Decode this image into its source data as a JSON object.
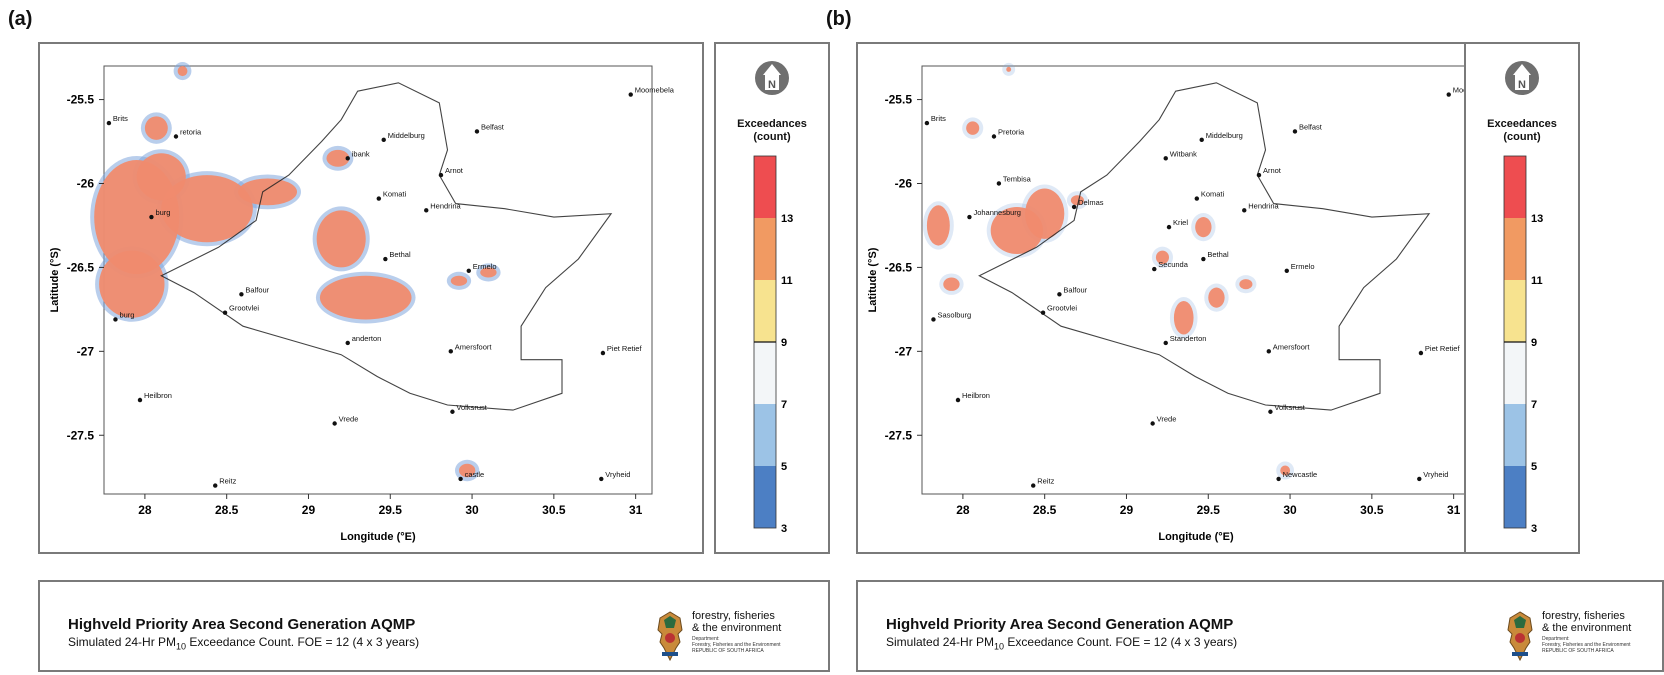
{
  "figures": [
    {
      "panel_label": "(a)",
      "footer": {
        "title": "Highveld Priority Area Second Generation AQMP",
        "subtitle_prefix": "Simulated 24-Hr PM",
        "subtitle_sub": "10",
        "subtitle_suffix": " Exceedance Count.  FOE = 12 (4 x 3 years)",
        "logo_text": [
          "forestry, fisheries",
          "& the environment"
        ],
        "logo_fine": [
          "Department:",
          "Forestry, Fisheries and the Environment",
          "REPUBLIC OF SOUTH AFRICA"
        ]
      },
      "towns": [
        {
          "name": "Moomebela",
          "lon": 30.97,
          "lat": -25.47
        },
        {
          "name": "Brits",
          "lon": 27.78,
          "lat": -25.64
        },
        {
          "name": "Pretoria",
          "lon": 28.19,
          "lat": -25.72
        },
        {
          "name": "Middelburg",
          "lon": 29.46,
          "lat": -25.74
        },
        {
          "name": "Belfast",
          "lon": 30.03,
          "lat": -25.69
        },
        {
          "name": "Witbank",
          "lon": 29.24,
          "lat": -25.85
        },
        {
          "name": "Arnot",
          "lon": 29.81,
          "lat": -25.95
        },
        {
          "name": "Komati",
          "lon": 29.43,
          "lat": -26.09
        },
        {
          "name": "Hendrina",
          "lon": 29.72,
          "lat": -26.16
        },
        {
          "name": "Johannesburg",
          "lon": 28.04,
          "lat": -26.2
        },
        {
          "name": "Bethal",
          "lon": 29.47,
          "lat": -26.45
        },
        {
          "name": "Ermelo",
          "lon": 29.98,
          "lat": -26.52
        },
        {
          "name": "Balfour",
          "lon": 28.59,
          "lat": -26.66
        },
        {
          "name": "Grootvlei",
          "lon": 28.49,
          "lat": -26.77
        },
        {
          "name": "Sasolburg",
          "lon": 27.82,
          "lat": -26.81
        },
        {
          "name": "Standerton",
          "lon": 29.24,
          "lat": -26.95
        },
        {
          "name": "Amersfoort",
          "lon": 29.87,
          "lat": -27.0
        },
        {
          "name": "Piet Retief",
          "lon": 30.8,
          "lat": -27.01
        },
        {
          "name": "Heilbron",
          "lon": 27.97,
          "lat": -27.29
        },
        {
          "name": "Volksrust",
          "lon": 29.88,
          "lat": -27.36
        },
        {
          "name": "Vrede",
          "lon": 29.16,
          "lat": -27.43
        },
        {
          "name": "Newcastle",
          "lon": 29.93,
          "lat": -27.76
        },
        {
          "name": "Reitz",
          "lon": 28.43,
          "lat": -27.8
        },
        {
          "name": "Vryheid",
          "lon": 30.79,
          "lat": -27.76
        }
      ],
      "town_labels_shown": {
        "Moomebela": "Moomebela",
        "Brits": "Brits",
        "Pretoria": "retoria",
        "Middelburg": "Middelburg",
        "Belfast": "Belfast",
        "Witbank": "ibank",
        "Arnot": "Arnot",
        "Komati": "Komati",
        "Hendrina": "Hendrina",
        "Johannesburg": "burg",
        "Bethal": "Bethal",
        "Ermelo": "Ermelo",
        "Balfour": "Balfour",
        "Grootvlei": "Grootvlei",
        "Sasolburg": "burg",
        "Standerton": "anderton",
        "Amersfoort": "Amersfoort",
        "Piet Retief": "Piet Retief",
        "Heilbron": "Heilbron",
        "Volksrust": "Volksrust",
        "Vrede": "Vrede",
        "Newcastle": "castle",
        "Reitz": "Reitz",
        "Vryheid": "Vryheid"
      },
      "exceedance_patches": [
        {
          "lon": 27.95,
          "lat": -26.2,
          "rx": 0.26,
          "ry": 0.34,
          "level": 12
        },
        {
          "lon": 27.92,
          "lat": -26.6,
          "rx": 0.2,
          "ry": 0.2,
          "level": 12
        },
        {
          "lon": 28.38,
          "lat": -26.15,
          "rx": 0.28,
          "ry": 0.2,
          "level": 12
        },
        {
          "lon": 28.1,
          "lat": -25.96,
          "rx": 0.15,
          "ry": 0.14,
          "level": 12
        },
        {
          "lon": 28.75,
          "lat": -26.05,
          "rx": 0.18,
          "ry": 0.08,
          "level": 12
        },
        {
          "lon": 28.07,
          "lat": -25.67,
          "rx": 0.07,
          "ry": 0.07,
          "level": 12
        },
        {
          "lon": 29.18,
          "lat": -25.85,
          "rx": 0.07,
          "ry": 0.05,
          "level": 12
        },
        {
          "lon": 29.2,
          "lat": -26.33,
          "rx": 0.15,
          "ry": 0.17,
          "level": 12
        },
        {
          "lon": 29.35,
          "lat": -26.68,
          "rx": 0.28,
          "ry": 0.13,
          "level": 12
        },
        {
          "lon": 29.97,
          "lat": -27.71,
          "rx": 0.05,
          "ry": 0.04,
          "level": 12
        },
        {
          "lon": 28.23,
          "lat": -25.33,
          "rx": 0.03,
          "ry": 0.03,
          "level": 12
        },
        {
          "lon": 30.1,
          "lat": -26.53,
          "rx": 0.05,
          "ry": 0.03,
          "level": 12
        },
        {
          "lon": 29.92,
          "lat": -26.58,
          "rx": 0.05,
          "ry": 0.03,
          "level": 12
        }
      ]
    },
    {
      "panel_label": "(b)",
      "footer": {
        "title": "Highveld Priority Area Second Generation AQMP",
        "subtitle_prefix": "Simulated 24-Hr PM",
        "subtitle_sub": "10",
        "subtitle_suffix": " Exceedance Count.  FOE = 12 (4 x 3 years)",
        "logo_text": [
          "forestry, fisheries",
          "& the environment"
        ],
        "logo_fine": [
          "Department:",
          "Forestry, Fisheries and the Environment",
          "REPUBLIC OF SOUTH AFRICA"
        ]
      },
      "towns": [
        {
          "name": "Moomebela",
          "lon": 30.97,
          "lat": -25.47
        },
        {
          "name": "Brits",
          "lon": 27.78,
          "lat": -25.64
        },
        {
          "name": "Pretoria",
          "lon": 28.19,
          "lat": -25.72
        },
        {
          "name": "Middelburg",
          "lon": 29.46,
          "lat": -25.74
        },
        {
          "name": "Belfast",
          "lon": 30.03,
          "lat": -25.69
        },
        {
          "name": "Witbank",
          "lon": 29.24,
          "lat": -25.85
        },
        {
          "name": "Arnot",
          "lon": 29.81,
          "lat": -25.95
        },
        {
          "name": "Tembisa",
          "lon": 28.22,
          "lat": -26.0
        },
        {
          "name": "Delmas",
          "lon": 28.68,
          "lat": -26.14
        },
        {
          "name": "Komati",
          "lon": 29.43,
          "lat": -26.09
        },
        {
          "name": "Hendrina",
          "lon": 29.72,
          "lat": -26.16
        },
        {
          "name": "Johannesburg",
          "lon": 28.04,
          "lat": -26.2
        },
        {
          "name": "Kriel",
          "lon": 29.26,
          "lat": -26.26
        },
        {
          "name": "Bethal",
          "lon": 29.47,
          "lat": -26.45
        },
        {
          "name": "Secunda",
          "lon": 29.17,
          "lat": -26.51
        },
        {
          "name": "Ermelo",
          "lon": 29.98,
          "lat": -26.52
        },
        {
          "name": "Balfour",
          "lon": 28.59,
          "lat": -26.66
        },
        {
          "name": "Grootvlei",
          "lon": 28.49,
          "lat": -26.77
        },
        {
          "name": "Sasolburg",
          "lon": 27.82,
          "lat": -26.81
        },
        {
          "name": "Standerton",
          "lon": 29.24,
          "lat": -26.95
        },
        {
          "name": "Amersfoort",
          "lon": 29.87,
          "lat": -27.0
        },
        {
          "name": "Piet Retief",
          "lon": 30.8,
          "lat": -27.01
        },
        {
          "name": "Heilbron",
          "lon": 27.97,
          "lat": -27.29
        },
        {
          "name": "Volksrust",
          "lon": 29.88,
          "lat": -27.36
        },
        {
          "name": "Vrede",
          "lon": 29.16,
          "lat": -27.43
        },
        {
          "name": "Newcastle",
          "lon": 29.93,
          "lat": -27.76
        },
        {
          "name": "Reitz",
          "lon": 28.43,
          "lat": -27.8
        },
        {
          "name": "Vryheid",
          "lon": 30.79,
          "lat": -27.76
        }
      ],
      "town_labels_shown": {
        "Moomebela": "Moomebela",
        "Brits": "Brits",
        "Pretoria": "Pretoria",
        "Middelburg": "Middelburg",
        "Belfast": "Belfast",
        "Witbank": "Witbank",
        "Arnot": "Arnot",
        "Tembisa": "Tembisa",
        "Delmas": "Delmas",
        "Komati": "Komati",
        "Hendrina": "Hendrina",
        "Johannesburg": "Johannesburg",
        "Kriel": "Kriel",
        "Bethal": "Bethal",
        "Secunda": "Secunda",
        "Ermelo": "Ermelo",
        "Balfour": "Balfour",
        "Grootvlei": "Grootvlei",
        "Sasolburg": "Sasolburg",
        "Standerton": "Standerton",
        "Amersfoort": "Amersfoort",
        "Piet Retief": "Piet Retief",
        "Heilbron": "Heilbron",
        "Volksrust": "Volksrust",
        "Vrede": "Vrede",
        "Newcastle": "Newcastle",
        "Reitz": "Reitz",
        "Vryheid": "Vryheid"
      },
      "exceedance_patches": [
        {
          "lon": 28.33,
          "lat": -26.28,
          "rx": 0.16,
          "ry": 0.14,
          "level": 12
        },
        {
          "lon": 28.5,
          "lat": -26.18,
          "rx": 0.12,
          "ry": 0.15,
          "level": 12
        },
        {
          "lon": 27.85,
          "lat": -26.25,
          "rx": 0.07,
          "ry": 0.12,
          "level": 12
        },
        {
          "lon": 27.93,
          "lat": -26.6,
          "rx": 0.05,
          "ry": 0.04,
          "level": 12
        },
        {
          "lon": 28.06,
          "lat": -25.67,
          "rx": 0.04,
          "ry": 0.04,
          "level": 12
        },
        {
          "lon": 29.47,
          "lat": -26.26,
          "rx": 0.05,
          "ry": 0.06,
          "level": 12
        },
        {
          "lon": 29.22,
          "lat": -26.44,
          "rx": 0.04,
          "ry": 0.04,
          "level": 12
        },
        {
          "lon": 29.35,
          "lat": -26.8,
          "rx": 0.06,
          "ry": 0.1,
          "level": 12
        },
        {
          "lon": 29.55,
          "lat": -26.68,
          "rx": 0.05,
          "ry": 0.06,
          "level": 12
        },
        {
          "lon": 29.97,
          "lat": -27.71,
          "rx": 0.03,
          "ry": 0.03,
          "level": 12
        },
        {
          "lon": 29.73,
          "lat": -26.6,
          "rx": 0.04,
          "ry": 0.03,
          "level": 12
        },
        {
          "lon": 28.7,
          "lat": -26.1,
          "rx": 0.04,
          "ry": 0.03,
          "level": 12
        },
        {
          "lon": 28.28,
          "lat": -25.32,
          "rx": 0.015,
          "ry": 0.015,
          "level": 12
        }
      ]
    }
  ],
  "axes": {
    "xlabel": "Longitude (°E)",
    "ylabel": "Latitude (°S)",
    "xlim": [
      27.75,
      31.1
    ],
    "ylim": [
      -27.85,
      -25.3
    ],
    "xticks": [
      28,
      28.5,
      29,
      29.5,
      30,
      30.5,
      31
    ],
    "xtick_labels": [
      "28",
      "28.5",
      "29",
      "29.5",
      "30",
      "30.5",
      "31"
    ],
    "yticks": [
      -25.5,
      -26,
      -26.5,
      -27,
      -27.5
    ],
    "ytick_labels": [
      "-25.5",
      "-26",
      "-26.5",
      "-27",
      "-27.5"
    ]
  },
  "boundary": [
    [
      29.3,
      -25.45
    ],
    [
      29.55,
      -25.4
    ],
    [
      29.8,
      -25.52
    ],
    [
      29.85,
      -25.8
    ],
    [
      29.8,
      -25.95
    ],
    [
      29.9,
      -26.12
    ],
    [
      30.2,
      -26.15
    ],
    [
      30.5,
      -26.2
    ],
    [
      30.85,
      -26.18
    ],
    [
      30.65,
      -26.45
    ],
    [
      30.45,
      -26.62
    ],
    [
      30.3,
      -26.85
    ],
    [
      30.3,
      -27.05
    ],
    [
      30.55,
      -27.05
    ],
    [
      30.55,
      -27.25
    ],
    [
      30.25,
      -27.35
    ],
    [
      29.85,
      -27.32
    ],
    [
      29.62,
      -27.25
    ],
    [
      29.42,
      -27.15
    ],
    [
      29.2,
      -27.02
    ],
    [
      28.95,
      -26.95
    ],
    [
      28.6,
      -26.85
    ],
    [
      28.3,
      -26.65
    ],
    [
      28.1,
      -26.55
    ],
    [
      28.45,
      -26.38
    ],
    [
      28.68,
      -26.22
    ],
    [
      28.72,
      -26.05
    ],
    [
      28.88,
      -25.95
    ],
    [
      29.08,
      -25.75
    ],
    [
      29.2,
      -25.62
    ]
  ],
  "legend": {
    "north_label": "N",
    "title_line1": "Exceedances",
    "title_line2": "(count)",
    "tick_labels_a": [
      "13",
      "11",
      "9",
      "7",
      "5",
      "3"
    ],
    "tick_labels_b": [
      "13",
      "11",
      "9",
      "7",
      "5",
      "3"
    ],
    "bins": [
      {
        "from": 13,
        "to": 15,
        "color": "#ee4d50"
      },
      {
        "from": 11,
        "to": 13,
        "color": "#f19a62"
      },
      {
        "from": 9,
        "to": 11,
        "color": "#f7e38f"
      },
      {
        "from": 7,
        "to": 9,
        "color": "#f3f6f8"
      },
      {
        "from": 5,
        "to": 7,
        "color": "#9cc3e6"
      },
      {
        "from": 3,
        "to": 5,
        "color": "#4c7fc4"
      }
    ]
  },
  "colors": {
    "exceedance_fill": "#f08b6e",
    "exceedance_blue": "#7fa6dc",
    "boundary": "#222222",
    "frame": "#7a7a7a"
  }
}
